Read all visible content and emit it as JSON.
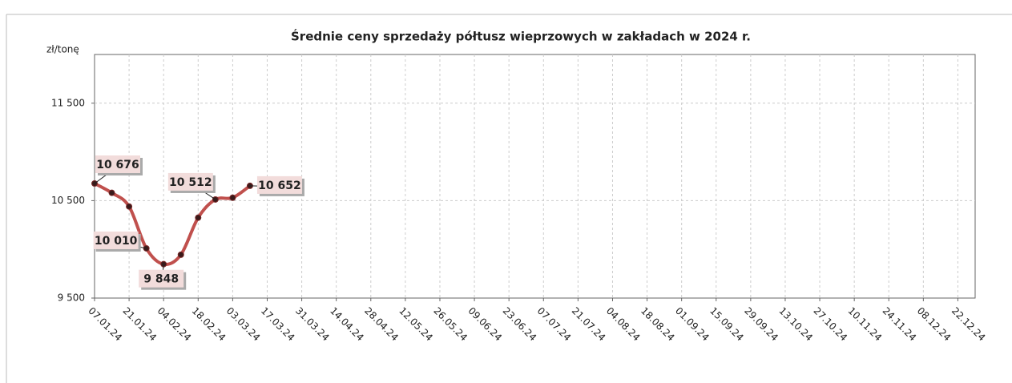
{
  "chart_data": {
    "type": "line",
    "title": "Średnie ceny sprzedaży półtusz wieprzowych w zakładach w 2024 r.",
    "y_label": "zł/tonę",
    "categories": [
      "07.01.24",
      null,
      "21.01.24",
      null,
      "04.02.24",
      null,
      "18.02.24",
      null,
      "03.03.24",
      null,
      "17.03.24",
      null,
      "31.03.24",
      null,
      "14.04.24",
      null,
      "28.04.24",
      null,
      "12.05.24",
      null,
      "26.05.24",
      null,
      "09.06.24",
      null,
      "23.06.24",
      null,
      "07.07.24",
      null,
      "21.07.24",
      null,
      "04.08.24",
      null,
      "18.08.24",
      null,
      "01.09.24",
      null,
      "15.09.24",
      null,
      "29.09.24",
      null,
      "13.10.24",
      null,
      "27.10.24",
      null,
      "10.11.24",
      null,
      "24.11.24",
      null,
      "08.12.24",
      null,
      "22.12.24",
      null
    ],
    "series": [
      {
        "name": "Średnie ceny",
        "color": "#c0504d",
        "values": [
          10676,
          10580,
          10440,
          10010,
          9848,
          9945,
          10325,
          10512,
          10530,
          10652,
          null,
          null,
          null,
          null,
          null,
          null,
          null,
          null,
          null,
          null,
          null,
          null,
          null,
          null,
          null,
          null,
          null,
          null,
          null,
          null,
          null,
          null,
          null,
          null,
          null,
          null,
          null,
          null,
          null,
          null,
          null,
          null,
          null,
          null,
          null,
          null,
          null,
          null,
          null,
          null,
          null,
          null
        ],
        "value_labels": [
          "10 676",
          null,
          null,
          "10 010",
          "9 848",
          null,
          null,
          "10 512",
          null,
          "10 652",
          null,
          null,
          null,
          null,
          null,
          null,
          null,
          null,
          null,
          null,
          null,
          null,
          null,
          null,
          null,
          null,
          null,
          null,
          null,
          null,
          null,
          null,
          null,
          null,
          null,
          null,
          null,
          null,
          null,
          null,
          null,
          null,
          null,
          null,
          null,
          null,
          null,
          null,
          null,
          null,
          null,
          null
        ]
      }
    ],
    "ylim": [
      9500,
      12000
    ],
    "yticks": [
      {
        "value": 9500,
        "label": "9 500"
      },
      {
        "value": 10500,
        "label": "10 500"
      },
      {
        "value": 11500,
        "label": "11 500"
      }
    ],
    "grid": true
  }
}
